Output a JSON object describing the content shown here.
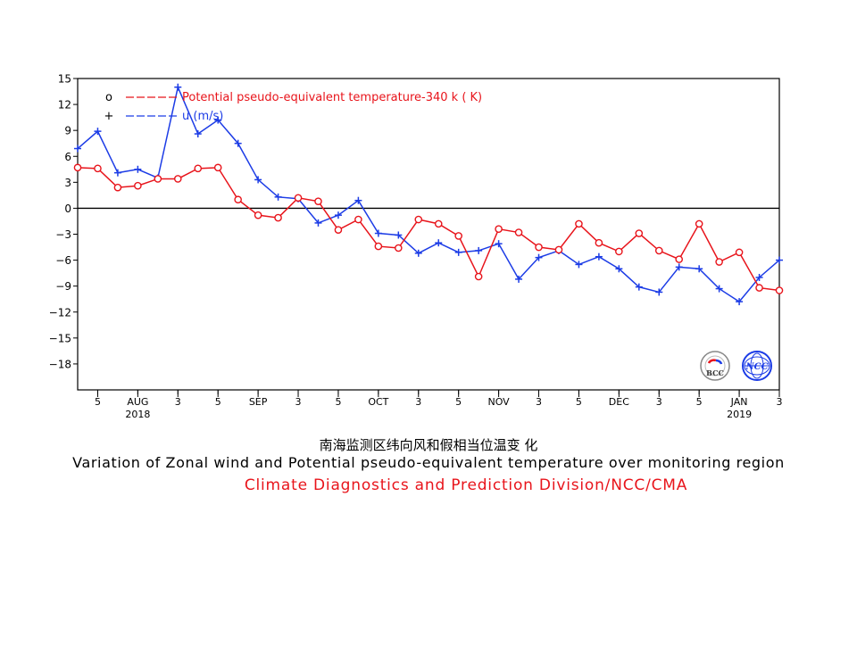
{
  "colors": {
    "temp": "#e8141b",
    "wind": "#1c3ce6",
    "axis": "#000000"
  },
  "chart_data": {
    "type": "line",
    "x_positions": [
      0,
      1,
      2,
      3,
      4,
      5,
      6,
      7,
      8,
      9,
      10,
      11,
      12,
      13,
      14,
      15,
      16,
      17,
      18,
      19,
      20,
      21,
      22,
      23,
      24,
      25,
      26,
      27,
      28,
      29,
      30,
      31,
      32,
      33,
      34,
      35
    ],
    "series": [
      {
        "name": "Potential pseudo-equivalent temperature-340 k  ( K)",
        "marker": "circle",
        "values": [
          4.7,
          4.6,
          2.4,
          2.6,
          3.4,
          3.4,
          4.6,
          4.7,
          1.0,
          -0.8,
          -1.1,
          1.2,
          0.8,
          -2.5,
          -1.3,
          -4.4,
          -4.6,
          -1.3,
          -1.8,
          -3.2,
          -7.9,
          -2.4,
          -2.8,
          -4.5,
          -4.8,
          -1.8,
          -4.0,
          -5.0,
          -2.9,
          -4.9,
          -5.9,
          -1.8,
          -6.2,
          -5.1,
          -9.2,
          -9.5
        ]
      },
      {
        "name": "u   (m/s)",
        "marker": "plus",
        "values": [
          6.9,
          8.9,
          4.1,
          4.5,
          3.5,
          14.0,
          8.6,
          10.2,
          7.5,
          3.3,
          1.3,
          1.1,
          -1.7,
          -0.8,
          0.9,
          -2.9,
          -3.1,
          -5.2,
          -4.0,
          -5.1,
          -4.9,
          -4.1,
          -8.2,
          -5.7,
          -4.9,
          -6.5,
          -5.6,
          -7.0,
          -9.1,
          -9.7,
          -6.8,
          -7.0,
          -9.3,
          -10.8,
          -8.0,
          -6.0
        ]
      }
    ],
    "ylim": [
      -21,
      15
    ],
    "yticks": [
      15,
      12,
      9,
      6,
      3,
      0,
      -3,
      -6,
      -9,
      -12,
      -15,
      -18
    ],
    "zero_line": true,
    "xticks": [
      {
        "pos": 0.5,
        "label": "5"
      },
      {
        "pos": 2.5,
        "label": "AUG",
        "sub": "2018"
      },
      {
        "pos": 4.5,
        "label": "3"
      },
      {
        "pos": 6.5,
        "label": "5"
      },
      {
        "pos": 8.5,
        "label": "SEP"
      },
      {
        "pos": 10.5,
        "label": "3"
      },
      {
        "pos": 12.5,
        "label": "5"
      },
      {
        "pos": 14.5,
        "label": "OCT"
      },
      {
        "pos": 16.5,
        "label": "3"
      },
      {
        "pos": 18.5,
        "label": "5"
      },
      {
        "pos": 20.5,
        "label": "NOV"
      },
      {
        "pos": 22.5,
        "label": "3"
      },
      {
        "pos": 24.5,
        "label": "5"
      },
      {
        "pos": 26.5,
        "label": "DEC"
      },
      {
        "pos": 28.5,
        "label": "3"
      },
      {
        "pos": 30.5,
        "label": "5"
      },
      {
        "pos": 32.5,
        "label": "JAN",
        "sub": "2019"
      },
      {
        "pos": 34.5,
        "label": "3"
      }
    ],
    "legend_placement": "top-left",
    "legend_symbols": [
      "o",
      "+"
    ],
    "logos": [
      "BCC",
      "NCC"
    ]
  },
  "captions": {
    "chinese": "南海监测区纬向风和假相当位温变 化",
    "english": "Variation of Zonal wind and Potential pseudo-equivalent temperature over monitoring region",
    "org": "Climate Diagnostics and Prediction Division/NCC/CMA"
  }
}
